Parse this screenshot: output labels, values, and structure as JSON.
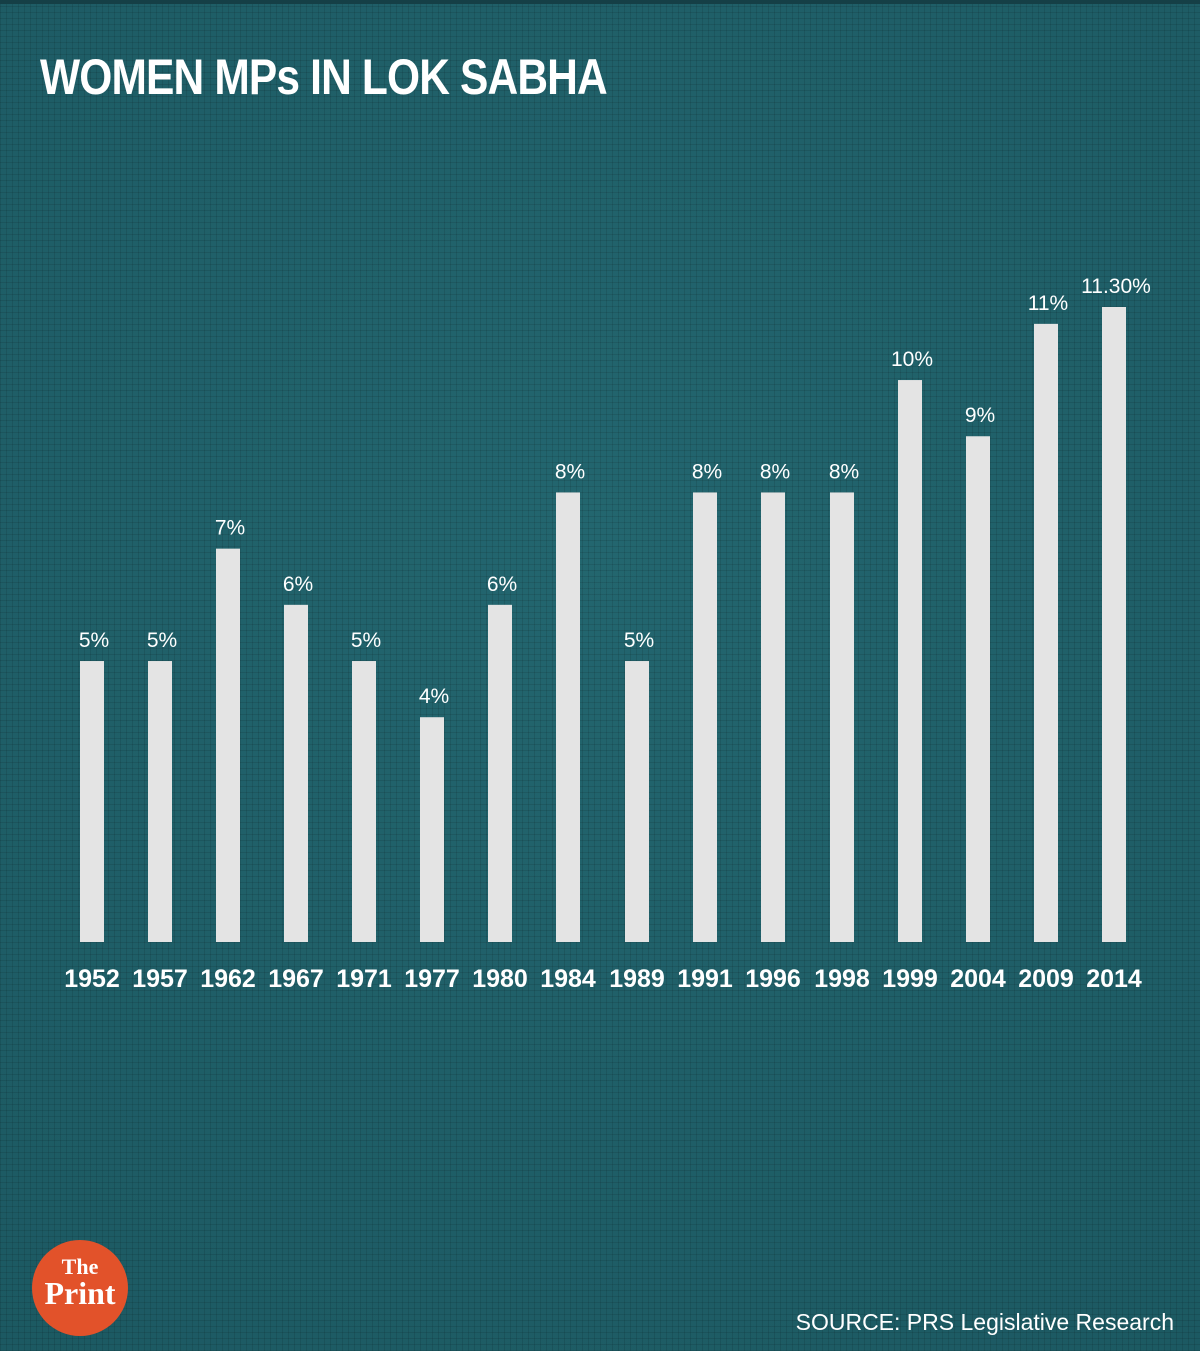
{
  "chart_data": {
    "type": "bar",
    "title": "WOMEN MPs IN LOK SABHA",
    "categories": [
      "1952",
      "1957",
      "1962",
      "1967",
      "1971",
      "1977",
      "1980",
      "1984",
      "1989",
      "1991",
      "1996",
      "1998",
      "1999",
      "2004",
      "2009",
      "2014"
    ],
    "values": [
      5,
      5,
      7,
      6,
      5,
      4,
      6,
      8,
      5,
      8,
      8,
      8,
      10,
      9,
      11,
      11.3
    ],
    "value_labels": [
      "5%",
      "5%",
      "7%",
      "6%",
      "5%",
      "4%",
      "6%",
      "8%",
      "5%",
      "8%",
      "8%",
      "8%",
      "10%",
      "9%",
      "11%",
      "11.30%"
    ],
    "xlabel": "",
    "ylabel": "",
    "ylim": [
      0,
      11.3
    ],
    "grid": false,
    "bar_color": "#e4e4e4"
  },
  "source": "SOURCE: PRS Legislative Research",
  "logo": {
    "line1": "The",
    "line2": "Print",
    "color": "#e2522a"
  },
  "colors": {
    "background": "#1f5f68",
    "text": "#ffffff"
  }
}
